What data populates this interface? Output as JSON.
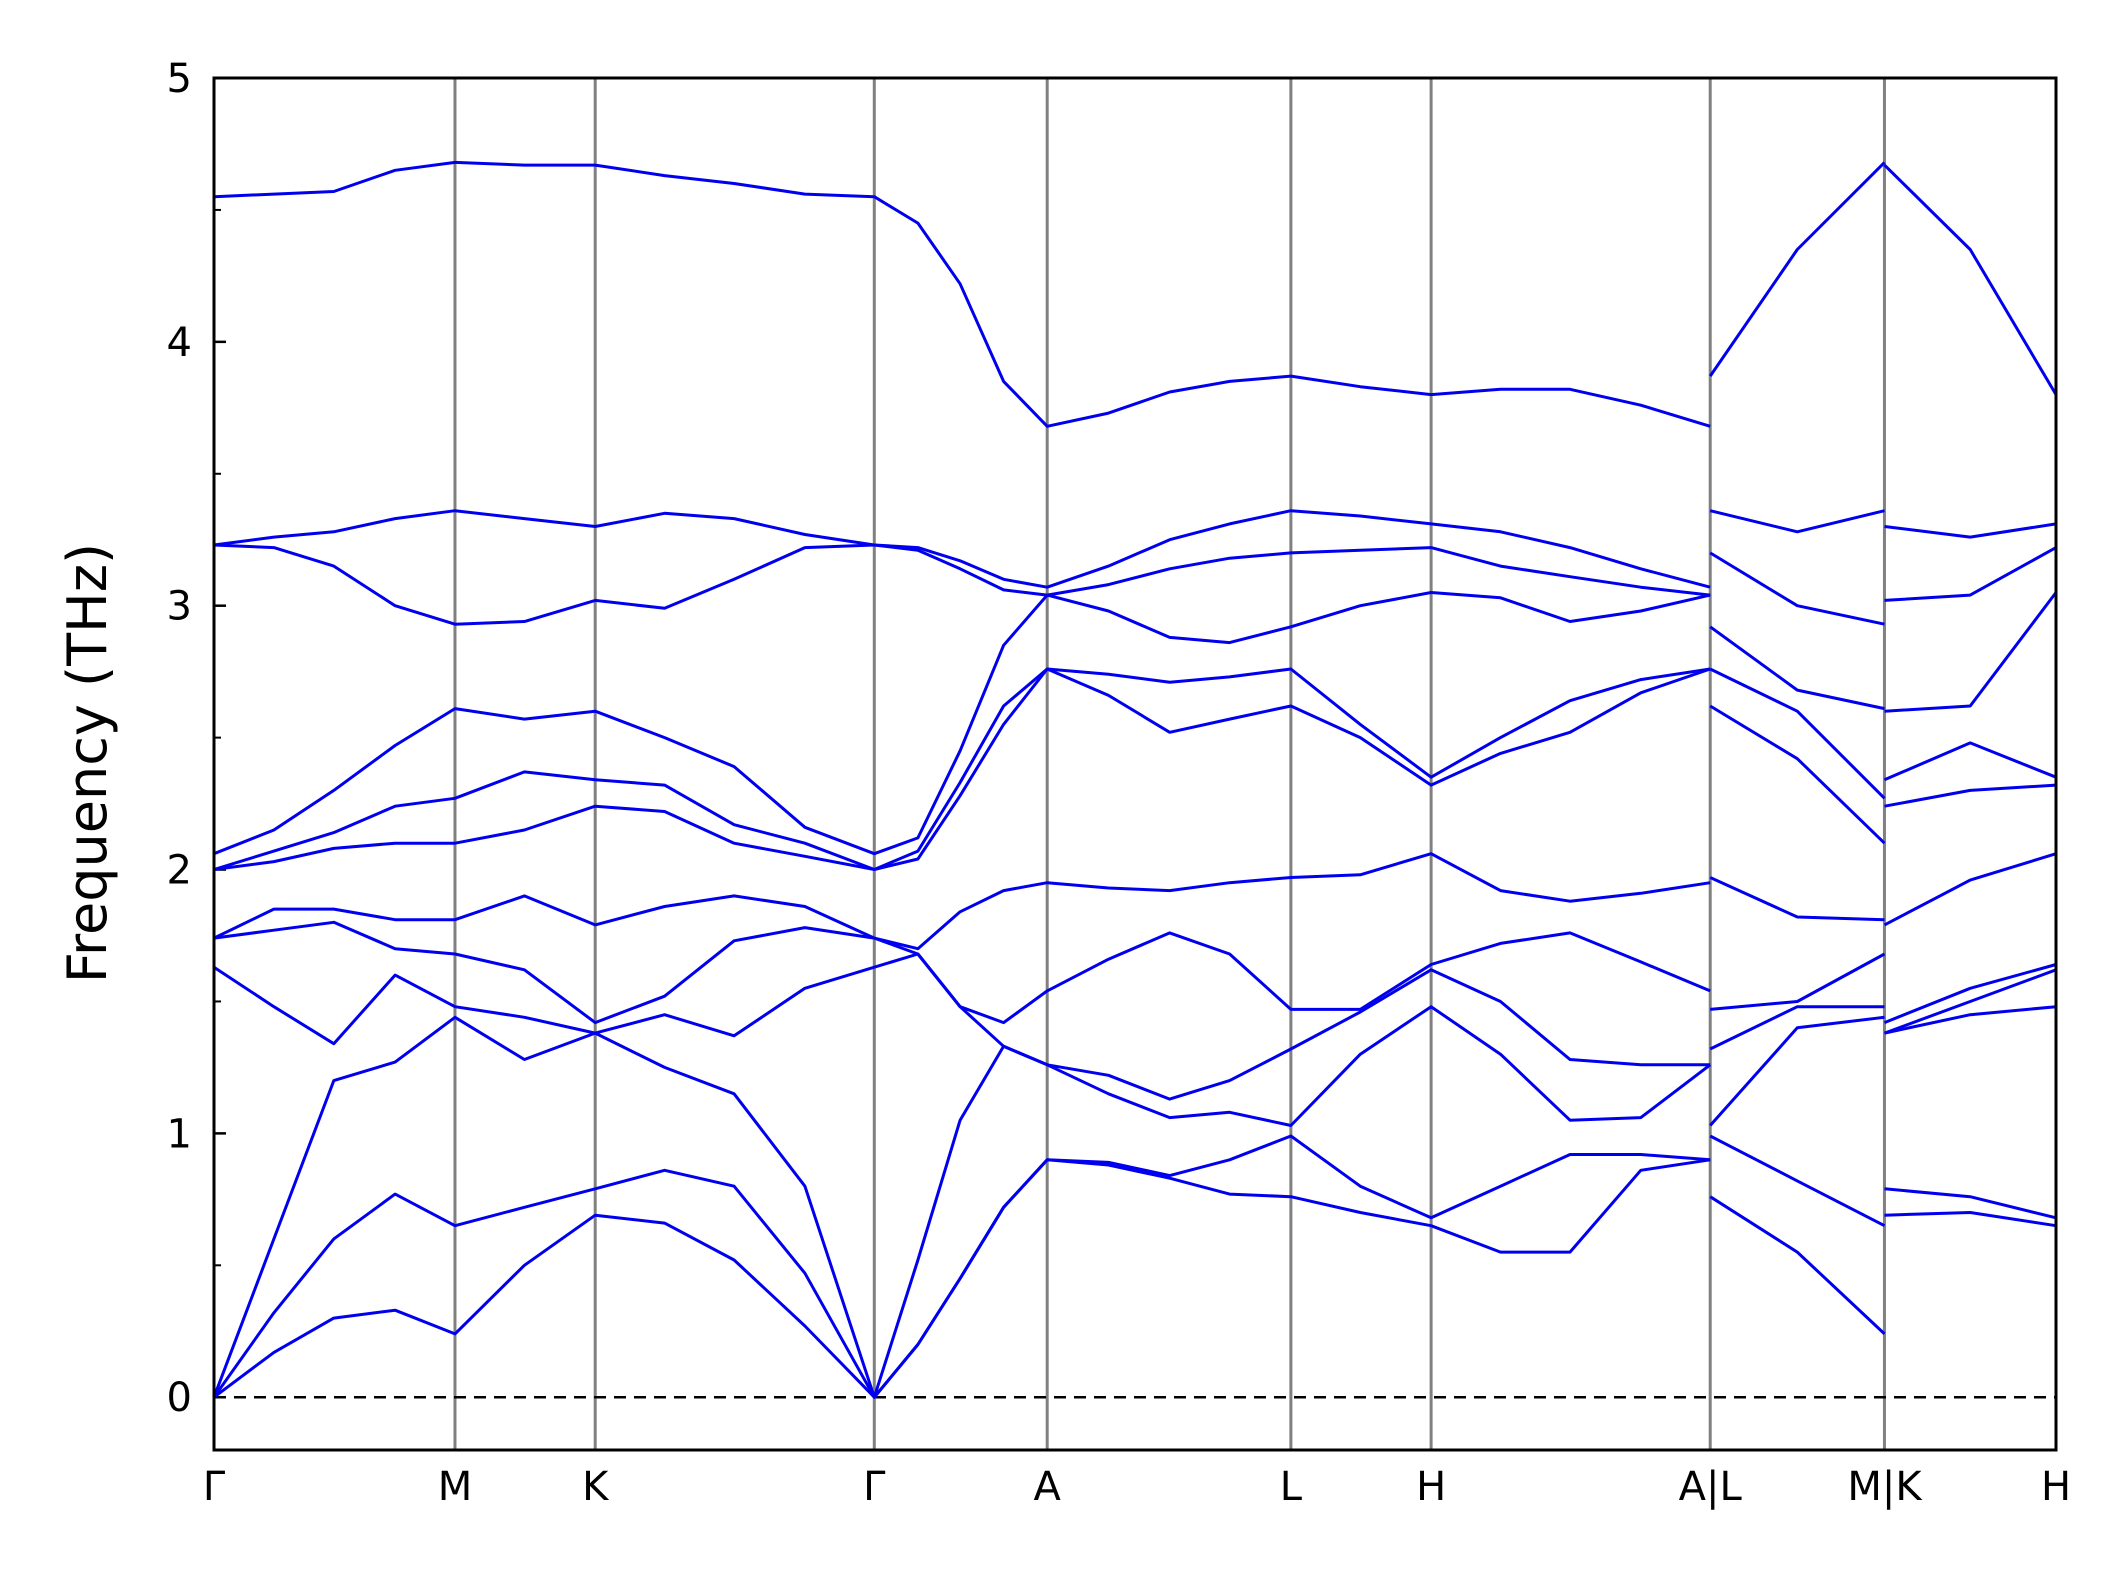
{
  "chart_data": {
    "type": "line",
    "y_label": "Frequency (THz)",
    "color": "#0000ee",
    "xlim": [
      0,
      13.53
    ],
    "ylim": [
      -0.2,
      5
    ],
    "yticks": [
      0,
      1,
      2,
      3,
      4,
      5
    ],
    "yminorticks": [
      0.5,
      1.5,
      2.5,
      3.5,
      4.5
    ],
    "xticks": [
      {
        "value": 0,
        "label": "Γ"
      },
      {
        "value": 1.77,
        "label": "M"
      },
      {
        "value": 2.8,
        "label": "K"
      },
      {
        "value": 4.85,
        "label": "Γ"
      },
      {
        "value": 6.12,
        "label": "A"
      },
      {
        "value": 7.91,
        "label": "L"
      },
      {
        "value": 8.94,
        "label": "H"
      },
      {
        "value": 10.99,
        "label": "A|L"
      },
      {
        "value": 12.27,
        "label": "M|K"
      },
      {
        "value": 13.53,
        "label": "H"
      }
    ],
    "xgrid": true,
    "hlines": [
      0
    ],
    "x": [
      0,
      0.44,
      0.88,
      1.33,
      1.77,
      2.28,
      2.8,
      3.31,
      3.82,
      4.34,
      4.85,
      5.17,
      5.48,
      5.8,
      6.12,
      6.57,
      7.02,
      7.46,
      7.91,
      8.42,
      8.94,
      9.45,
      9.96,
      10.48,
      10.99,
      10.99,
      10.99,
      11.63,
      12.27,
      12.27,
      12.27,
      12.9,
      13.53
    ],
    "series": [
      {
        "values": [
          0,
          0.17,
          0.3,
          0.33,
          0.24,
          0.5,
          0.69,
          0.66,
          0.52,
          0.27,
          0,
          0.2,
          0.45,
          0.72,
          0.9,
          0.88,
          0.83,
          0.77,
          0.76,
          0.7,
          0.65,
          0.55,
          0.55,
          0.86,
          0.9,
          null,
          0.76,
          0.55,
          0.24,
          null,
          0.69,
          0.7,
          0.65
        ]
      },
      {
        "values": [
          0,
          0.32,
          0.6,
          0.77,
          0.65,
          0.72,
          0.79,
          0.86,
          0.8,
          0.47,
          0,
          0.2,
          0.45,
          0.72,
          0.9,
          0.89,
          0.84,
          0.9,
          0.99,
          0.8,
          0.68,
          0.8,
          0.92,
          0.92,
          0.9,
          null,
          0.99,
          0.82,
          0.65,
          null,
          0.79,
          0.76,
          0.68
        ]
      },
      {
        "values": [
          0,
          0.6,
          1.2,
          1.27,
          1.44,
          1.28,
          1.38,
          1.25,
          1.15,
          0.8,
          0,
          0.52,
          1.05,
          1.33,
          1.26,
          1.15,
          1.06,
          1.08,
          1.03,
          1.3,
          1.48,
          1.3,
          1.05,
          1.06,
          1.26,
          null,
          1.03,
          1.4,
          1.44,
          null,
          1.38,
          1.45,
          1.48
        ]
      },
      {
        "values": [
          1.63,
          1.48,
          1.34,
          1.6,
          1.48,
          1.44,
          1.38,
          1.45,
          1.37,
          1.55,
          1.63,
          1.68,
          1.48,
          1.33,
          1.26,
          1.22,
          1.13,
          1.2,
          1.32,
          1.46,
          1.62,
          1.5,
          1.28,
          1.26,
          1.26,
          null,
          1.32,
          1.48,
          1.48,
          null,
          1.38,
          1.5,
          1.62
        ]
      },
      {
        "values": [
          1.74,
          1.77,
          1.8,
          1.7,
          1.68,
          1.62,
          1.42,
          1.52,
          1.73,
          1.78,
          1.74,
          1.68,
          1.48,
          1.42,
          1.54,
          1.66,
          1.76,
          1.68,
          1.47,
          1.47,
          1.64,
          1.72,
          1.76,
          1.65,
          1.54,
          null,
          1.47,
          1.5,
          1.68,
          null,
          1.42,
          1.55,
          1.64
        ]
      },
      {
        "values": [
          1.74,
          1.85,
          1.85,
          1.81,
          1.81,
          1.9,
          1.79,
          1.86,
          1.9,
          1.86,
          1.74,
          1.7,
          1.84,
          1.92,
          1.95,
          1.93,
          1.92,
          1.95,
          1.97,
          1.98,
          2.06,
          1.92,
          1.88,
          1.91,
          1.95,
          null,
          1.97,
          1.82,
          1.81,
          null,
          1.79,
          1.96,
          2.06
        ]
      },
      {
        "values": [
          2,
          2.03,
          2.08,
          2.1,
          2.1,
          2.15,
          2.24,
          2.22,
          2.1,
          2.05,
          2,
          2.04,
          2.28,
          2.55,
          2.76,
          2.66,
          2.52,
          2.57,
          2.62,
          2.5,
          2.32,
          2.44,
          2.52,
          2.67,
          2.76,
          null,
          2.62,
          2.42,
          2.1,
          null,
          2.24,
          2.3,
          2.32
        ]
      },
      {
        "values": [
          2,
          2.07,
          2.14,
          2.24,
          2.27,
          2.37,
          2.34,
          2.32,
          2.17,
          2.1,
          2,
          2.07,
          2.33,
          2.62,
          2.76,
          2.74,
          2.71,
          2.73,
          2.76,
          2.55,
          2.35,
          2.5,
          2.64,
          2.72,
          2.76,
          null,
          2.76,
          2.6,
          2.27,
          null,
          2.34,
          2.48,
          2.35
        ]
      },
      {
        "values": [
          2.06,
          2.15,
          2.3,
          2.47,
          2.61,
          2.57,
          2.6,
          2.5,
          2.39,
          2.16,
          2.06,
          2.12,
          2.45,
          2.85,
          3.04,
          2.98,
          2.88,
          2.86,
          2.92,
          3,
          3.05,
          3.03,
          2.94,
          2.98,
          3.04,
          null,
          2.92,
          2.68,
          2.61,
          null,
          2.6,
          2.62,
          3.05
        ]
      },
      {
        "values": [
          3.23,
          3.22,
          3.15,
          3,
          2.93,
          2.94,
          3.02,
          2.99,
          3.1,
          3.22,
          3.23,
          3.21,
          3.14,
          3.06,
          3.04,
          3.08,
          3.14,
          3.18,
          3.2,
          3.21,
          3.22,
          3.15,
          3.11,
          3.07,
          3.04,
          null,
          3.2,
          3,
          2.93,
          null,
          3.02,
          3.04,
          3.22
        ]
      },
      {
        "values": [
          3.23,
          3.26,
          3.28,
          3.33,
          3.36,
          3.33,
          3.3,
          3.35,
          3.33,
          3.27,
          3.23,
          3.22,
          3.17,
          3.1,
          3.07,
          3.15,
          3.25,
          3.31,
          3.36,
          3.34,
          3.31,
          3.28,
          3.22,
          3.14,
          3.07,
          null,
          3.36,
          3.28,
          3.36,
          null,
          3.3,
          3.26,
          3.31
        ]
      },
      {
        "values": [
          4.55,
          4.56,
          4.57,
          4.65,
          4.68,
          4.67,
          4.67,
          4.63,
          4.6,
          4.56,
          4.55,
          4.45,
          4.22,
          3.85,
          3.68,
          3.73,
          3.81,
          3.85,
          3.87,
          3.83,
          3.8,
          3.82,
          3.82,
          3.76,
          3.68,
          null,
          3.87,
          4.35,
          4.68,
          null,
          4.67,
          4.35,
          3.8
        ]
      }
    ]
  }
}
